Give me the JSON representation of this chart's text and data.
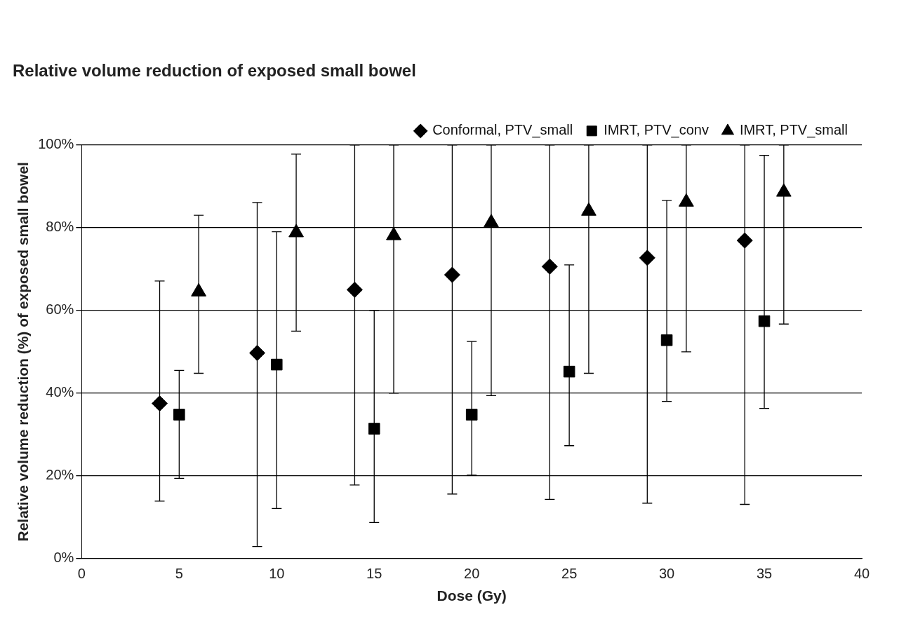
{
  "chart_data": {
    "type": "scatter",
    "title": "Relative volume reduction of exposed small bowel",
    "xlabel": "Dose (Gy)",
    "ylabel": "Relative volume reduction (%) of exposed small bowel",
    "xlim": [
      0,
      40
    ],
    "xticks": [
      0,
      5,
      10,
      15,
      20,
      25,
      30,
      35,
      40
    ],
    "ylim": [
      0,
      100
    ],
    "yticks": [
      {
        "value": 0,
        "label": "0%"
      },
      {
        "value": 20,
        "label": "20%"
      },
      {
        "value": 40,
        "label": "40%"
      },
      {
        "value": 60,
        "label": "60%"
      },
      {
        "value": 80,
        "label": "80%"
      },
      {
        "value": 100,
        "label": "100%"
      }
    ],
    "grid": "y",
    "legend": "top right",
    "series": [
      {
        "name": "Conformal, PTV_small",
        "color": "#000000",
        "marker": "diamond",
        "x": [
          4,
          9,
          14,
          19,
          24,
          29,
          34
        ],
        "values": [
          37.5,
          49.7,
          65,
          68.6,
          70.6,
          72.7,
          76.9
        ],
        "errors": [
          [
            13.9,
            67.1
          ],
          [
            2.9,
            86.1
          ],
          [
            17.8,
            100
          ],
          [
            15.6,
            100
          ],
          [
            14.3,
            100
          ],
          [
            13.4,
            100
          ],
          [
            13.1,
            100
          ]
        ]
      },
      {
        "name": "IMRT, PTV_conv",
        "color": "#000000",
        "marker": "square",
        "x": [
          5,
          10,
          15,
          20,
          25,
          30,
          35
        ],
        "values": [
          34.8,
          46.9,
          31.4,
          34.8,
          45.2,
          52.8,
          57.4
        ],
        "errors": [
          [
            19.4,
            45.5
          ],
          [
            12.1,
            79
          ],
          [
            8.7,
            60
          ],
          [
            20.2,
            52.5
          ],
          [
            27.3,
            71
          ],
          [
            38,
            86.6
          ],
          [
            36.3,
            97.5
          ]
        ]
      },
      {
        "name": "IMRT, PTV_small",
        "color": "#000000",
        "marker": "triangle",
        "x": [
          6,
          11,
          16,
          21,
          26,
          31,
          36
        ],
        "values": [
          64.5,
          78.8,
          78.1,
          81.2,
          84,
          86.2,
          88.6
        ],
        "errors": [
          [
            44.8,
            83
          ],
          [
            55,
            97.8
          ],
          [
            40,
            100
          ],
          [
            39.4,
            100
          ],
          [
            44.8,
            100
          ],
          [
            50,
            100
          ],
          [
            56.7,
            100
          ]
        ]
      }
    ]
  }
}
